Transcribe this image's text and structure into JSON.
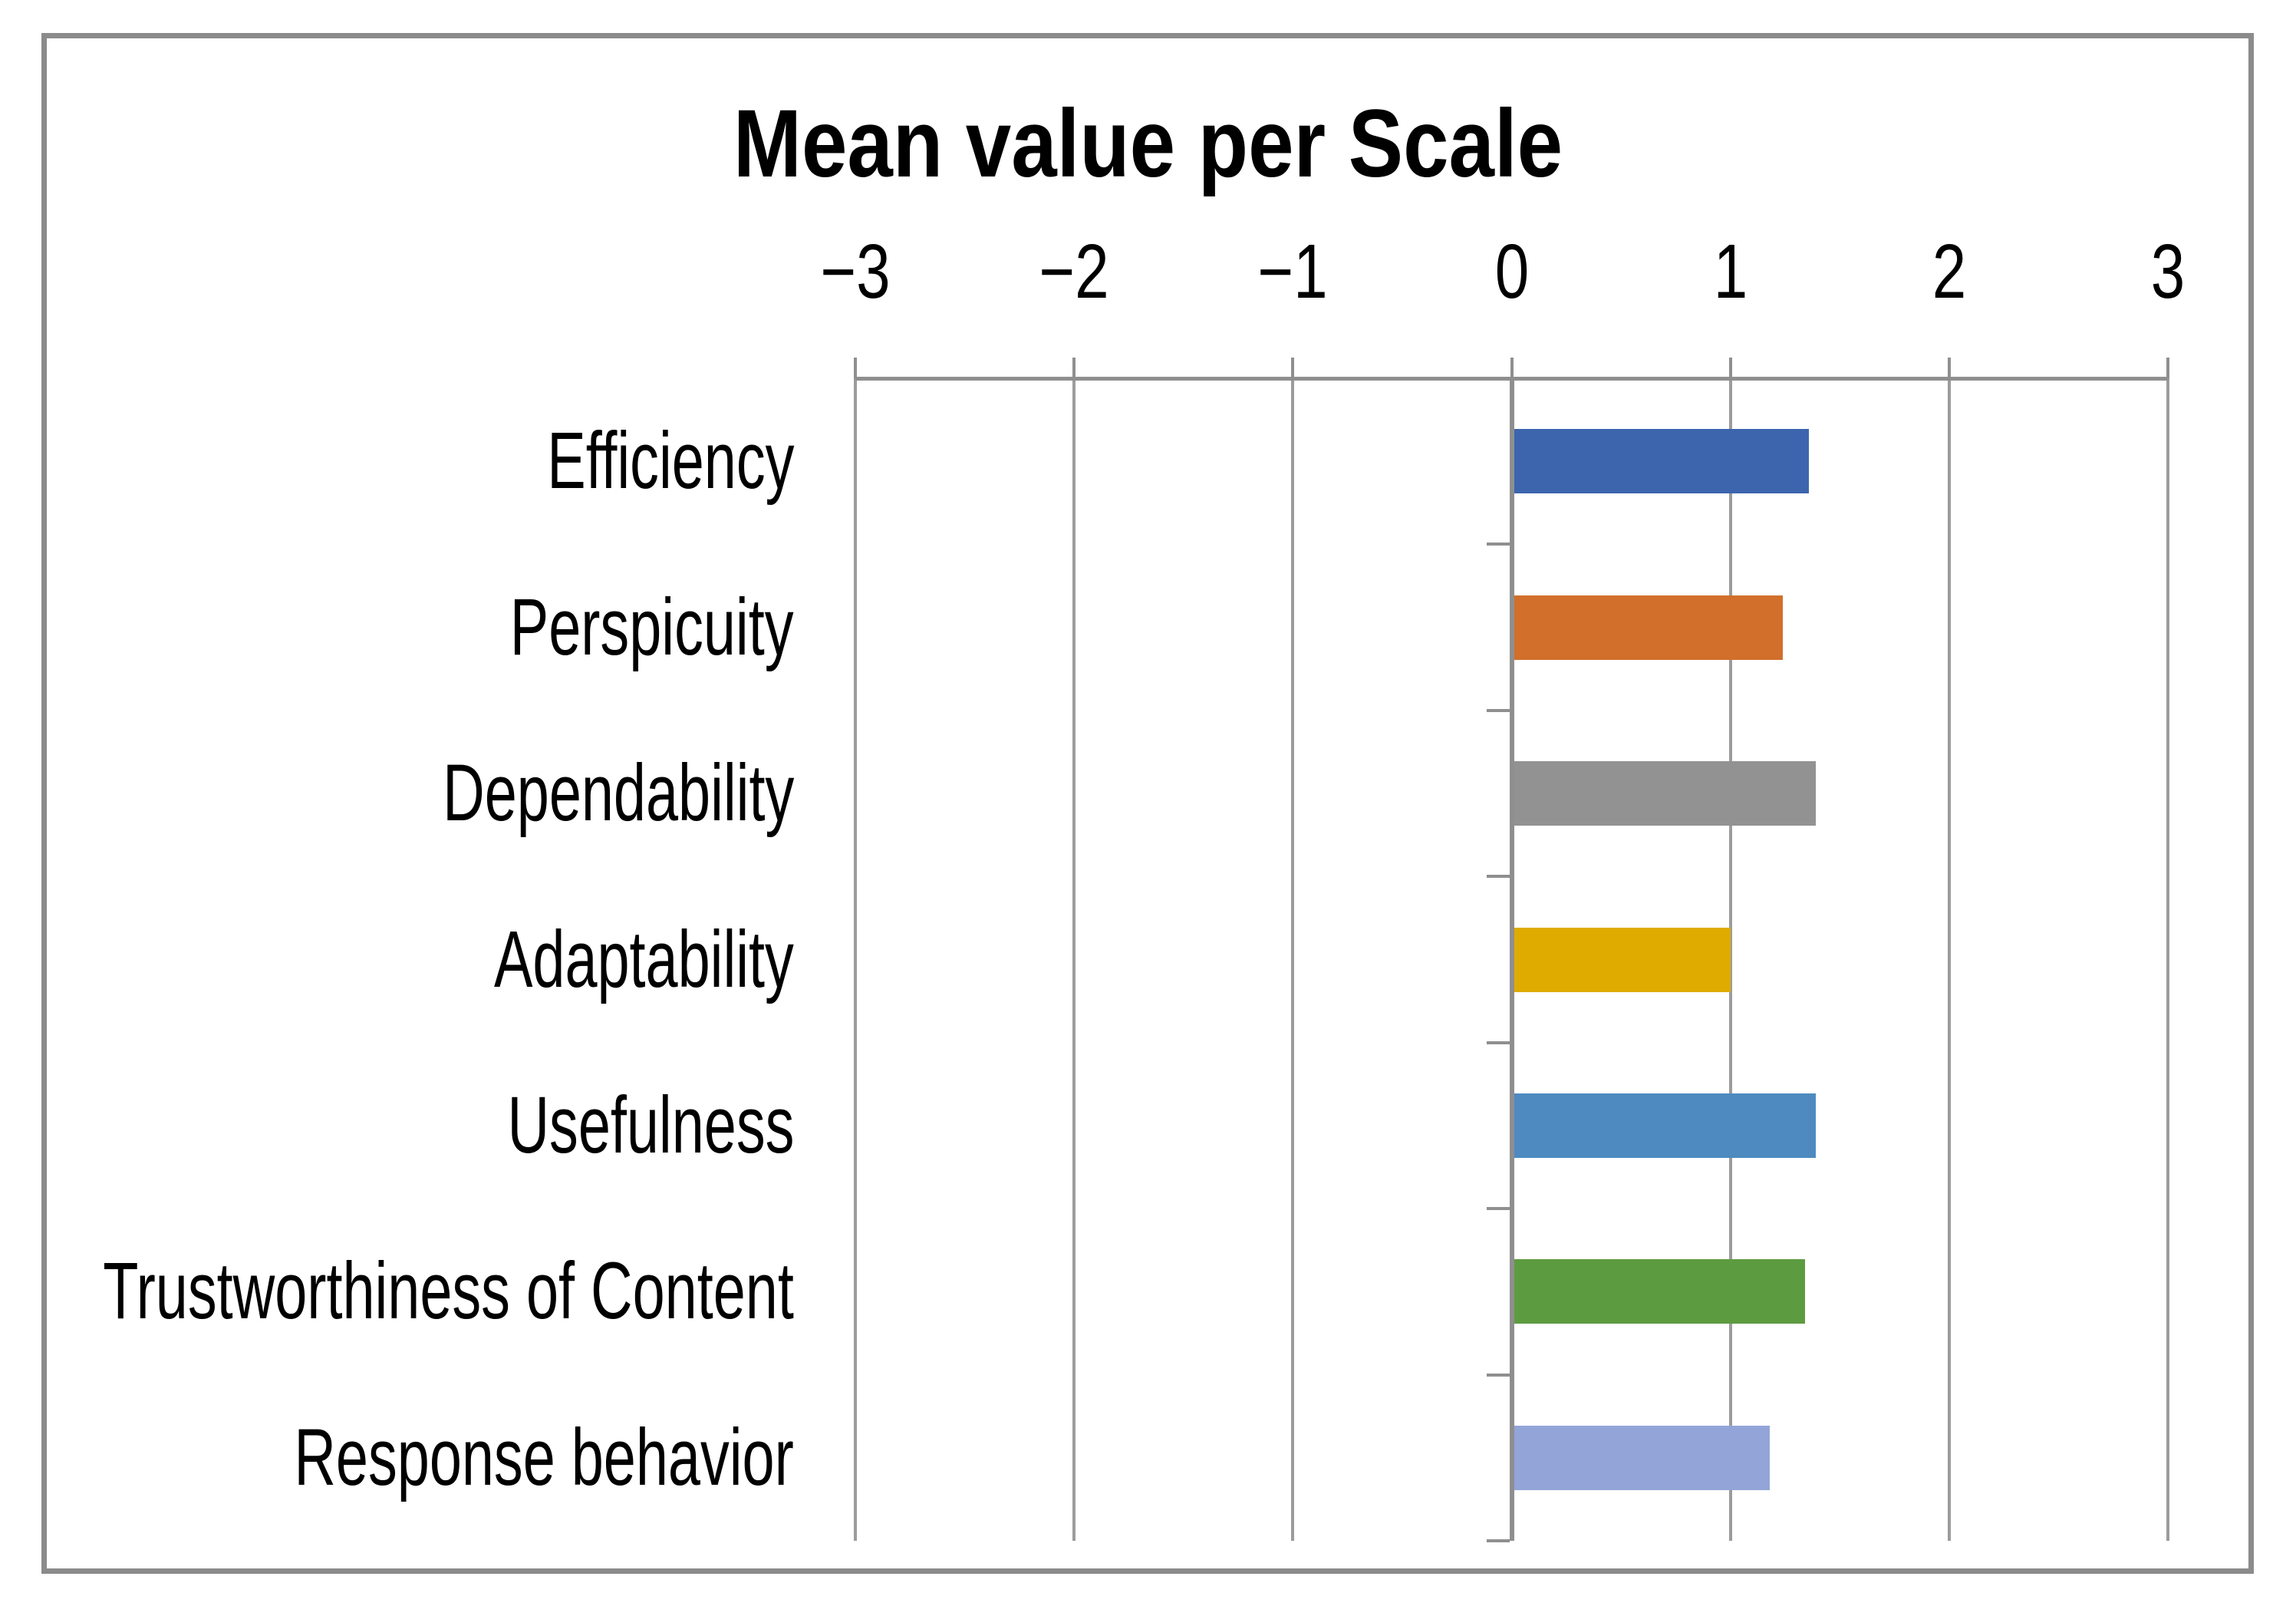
{
  "figure": {
    "background": "#ffffff",
    "border_color": "#8b8b8b"
  },
  "chart_data": {
    "type": "bar",
    "orientation": "horizontal",
    "title": "Mean value per Scale",
    "categories": [
      "Efficiency",
      "Perspicuity",
      "Dependability",
      "Adaptability",
      "Usefulness",
      "Trustworthiness of Content",
      "Response behavior"
    ],
    "values": [
      1.36,
      1.24,
      1.39,
      1.0,
      1.39,
      1.34,
      1.18
    ],
    "bar_colors": [
      "#3d65ae",
      "#d16f2b",
      "#929292",
      "#dfab00",
      "#4e8ac0",
      "#5d9b40",
      "#93a4d8"
    ],
    "xlim": [
      -3,
      3
    ],
    "x_tick_values": [
      -3,
      -2,
      -1,
      0,
      1,
      2,
      3
    ],
    "x_tick_labels": [
      "−3",
      "−2",
      "−1",
      "0",
      "1",
      "2",
      "3"
    ],
    "x_axis_position": "top",
    "grid": "vertical",
    "gridline_color": "#9c9c9c",
    "axis_color": "#8f8f8f",
    "text_color": "#000000",
    "legend": "none",
    "xlabel": "",
    "ylabel": ""
  }
}
